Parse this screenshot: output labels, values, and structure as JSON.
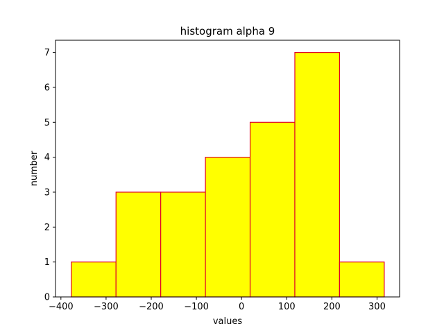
{
  "chart_data": {
    "type": "bar",
    "title": "histogram alpha 9",
    "xlabel": "values",
    "ylabel": "number",
    "bins": [
      {
        "start": -377,
        "end": -278,
        "count": 1
      },
      {
        "start": -278,
        "end": -179,
        "count": 3
      },
      {
        "start": -179,
        "end": -80,
        "count": 3
      },
      {
        "start": -80,
        "end": 19,
        "count": 4
      },
      {
        "start": 19,
        "end": 118,
        "count": 5
      },
      {
        "start": 118,
        "end": 217,
        "count": 7
      },
      {
        "start": 217,
        "end": 316,
        "count": 1
      }
    ],
    "xlim": [
      -412,
      350
    ],
    "ylim": [
      0,
      7.35
    ],
    "xticks": [
      -400,
      -300,
      -200,
      -100,
      0,
      100,
      200,
      300
    ],
    "xtick_labels": [
      "−400",
      "−300",
      "−200",
      "−100",
      "0",
      "100",
      "200",
      "300"
    ],
    "yticks": [
      0,
      1,
      2,
      3,
      4,
      5,
      6,
      7
    ],
    "ytick_labels": [
      "0",
      "1",
      "2",
      "3",
      "4",
      "5",
      "6",
      "7"
    ],
    "bar_fill": "#ffff00",
    "bar_edge": "#e0002a",
    "grid": false,
    "legend": false
  }
}
